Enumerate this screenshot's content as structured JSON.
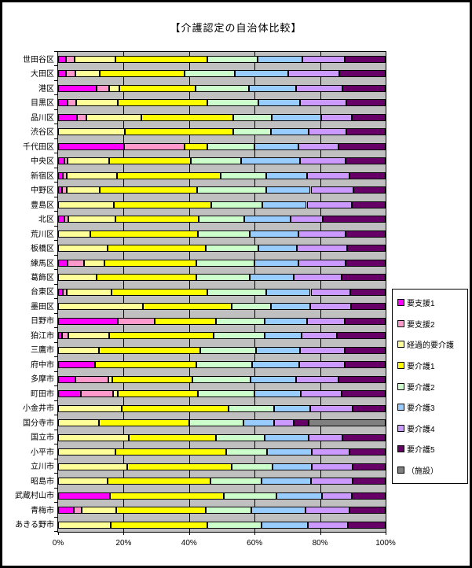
{
  "chart_data": {
    "type": "bar",
    "stacked": true,
    "orientation": "horizontal",
    "title": "【介護認定の自治体比較】",
    "xlim": [
      0,
      100
    ],
    "x_ticks": [
      "0%",
      "20%",
      "40%",
      "60%",
      "80%",
      "100%"
    ],
    "grid": true,
    "plot_bg": "#C0C0C0",
    "legend_position": "right",
    "series": [
      {
        "name": "要支援1",
        "color": "#FF00FF"
      },
      {
        "name": "要支援2",
        "color": "#FF99CC"
      },
      {
        "name": "経過的要介護",
        "color": "#FFFF99"
      },
      {
        "name": "要介護1",
        "color": "#FFFF00"
      },
      {
        "name": "要介護2",
        "color": "#CCFFCC"
      },
      {
        "name": "要介護3",
        "color": "#99CCFF"
      },
      {
        "name": "要介護4",
        "color": "#CC99FF"
      },
      {
        "name": "要介護5",
        "color": "#660066"
      },
      {
        "name": "（施設）",
        "color": "#808080"
      }
    ],
    "categories": [
      "世田谷区",
      "大田区",
      "港区",
      "目黒区",
      "品川区",
      "渋谷区",
      "千代田区",
      "中央区",
      "新宿区",
      "中野区",
      "豊島区",
      "北区",
      "荒川区",
      "板橋区",
      "練馬区",
      "葛飾区",
      "台東区",
      "墨田区",
      "日野市",
      "狛江市",
      "三鷹市",
      "府中市",
      "多摩市",
      "町田市",
      "小金井市",
      "国分寺市",
      "国立市",
      "小平市",
      "立川市",
      "昭島市",
      "武蔵村山市",
      "青梅市",
      "あきる野市"
    ],
    "values": [
      [
        2.3,
        2.7,
        12.4,
        28.1,
        15.5,
        13.5,
        13.0,
        12.5,
        0
      ],
      [
        2.3,
        3.0,
        7.5,
        25.8,
        15.4,
        16.3,
        15.6,
        14.1,
        0
      ],
      [
        11.8,
        3.7,
        3.1,
        23.3,
        16.4,
        14.4,
        14.0,
        13.3,
        0
      ],
      [
        2.9,
        2.7,
        12.6,
        27.3,
        15.6,
        12.8,
        14.1,
        12.0,
        0
      ],
      [
        5.8,
        2.8,
        16.9,
        28.0,
        11.7,
        15.1,
        9.4,
        10.3,
        0
      ],
      [
        0,
        0,
        20.5,
        33.0,
        11.5,
        11.6,
        11.5,
        11.9,
        0
      ],
      [
        20.1,
        18.4,
        0,
        7.0,
        14.4,
        13.6,
        12.0,
        14.5,
        0
      ],
      [
        1.8,
        1.1,
        12.6,
        25.0,
        15.4,
        18.0,
        13.9,
        12.2,
        0
      ],
      [
        1.4,
        1.2,
        15.3,
        31.8,
        13.8,
        12.6,
        12.9,
        11.0,
        0
      ],
      [
        1.3,
        1.3,
        10.1,
        29.8,
        21.0,
        13.6,
        13.0,
        9.9,
        0
      ],
      [
        0,
        0,
        17.1,
        29.6,
        15.6,
        13.6,
        13.8,
        10.3,
        0
      ],
      [
        1.8,
        1.2,
        14.5,
        25.4,
        14.0,
        14.0,
        9.8,
        19.3,
        0
      ],
      [
        0,
        0,
        9.9,
        32.8,
        15.7,
        15.1,
        14.2,
        12.3,
        0
      ],
      [
        0,
        0,
        15.1,
        30.1,
        15.9,
        11.7,
        15.4,
        11.8,
        0
      ],
      [
        2.8,
        5.1,
        6.2,
        28.2,
        17.6,
        13.6,
        14.3,
        12.2,
        0
      ],
      [
        0,
        0,
        11.7,
        30.6,
        16.1,
        13.6,
        14.6,
        13.4,
        0
      ],
      [
        1.4,
        1.2,
        13.6,
        29.3,
        18.0,
        13.6,
        12.1,
        10.8,
        0
      ],
      [
        0,
        0,
        25.9,
        27.0,
        12.0,
        12.0,
        12.5,
        10.6,
        0
      ],
      [
        18.2,
        11.3,
        0,
        18.6,
        15.0,
        13.0,
        11.4,
        12.5,
        0
      ],
      [
        1.2,
        1.8,
        12.6,
        31.9,
        15.6,
        11.2,
        10.8,
        14.9,
        0
      ],
      [
        0,
        0,
        12.5,
        31.0,
        16.9,
        13.5,
        13.6,
        12.5,
        0
      ],
      [
        11.2,
        0,
        0,
        31.1,
        17.0,
        14.4,
        13.8,
        12.5,
        0
      ],
      [
        5.3,
        10.1,
        1.1,
        24.4,
        17.8,
        14.0,
        12.8,
        14.5,
        0
      ],
      [
        6.9,
        9.9,
        1.4,
        24.5,
        17.2,
        14.1,
        12.6,
        13.4,
        0
      ],
      [
        0,
        0,
        19.5,
        32.6,
        13.8,
        11.0,
        13.0,
        10.1,
        0
      ],
      [
        0,
        0,
        12.5,
        27.6,
        16.4,
        9.4,
        6.0,
        4.6,
        23.5
      ],
      [
        0,
        0,
        21.7,
        26.4,
        14.9,
        13.5,
        10.4,
        13.1,
        0
      ],
      [
        0,
        0,
        17.4,
        33.9,
        12.6,
        13.6,
        11.5,
        11.0,
        0
      ],
      [
        0,
        0,
        21.1,
        31.8,
        12.6,
        12.0,
        12.4,
        10.1,
        0
      ],
      [
        0,
        0,
        15.0,
        31.5,
        15.5,
        15.2,
        12.7,
        10.1,
        0
      ],
      [
        15.8,
        0,
        0,
        34.7,
        16.2,
        13.8,
        9.2,
        10.3,
        0
      ],
      [
        4.8,
        2.5,
        10.4,
        27.5,
        13.9,
        16.4,
        13.4,
        11.1,
        0
      ],
      [
        0,
        0,
        16.0,
        29.5,
        16.5,
        14.3,
        12.2,
        11.5,
        0
      ]
    ]
  }
}
